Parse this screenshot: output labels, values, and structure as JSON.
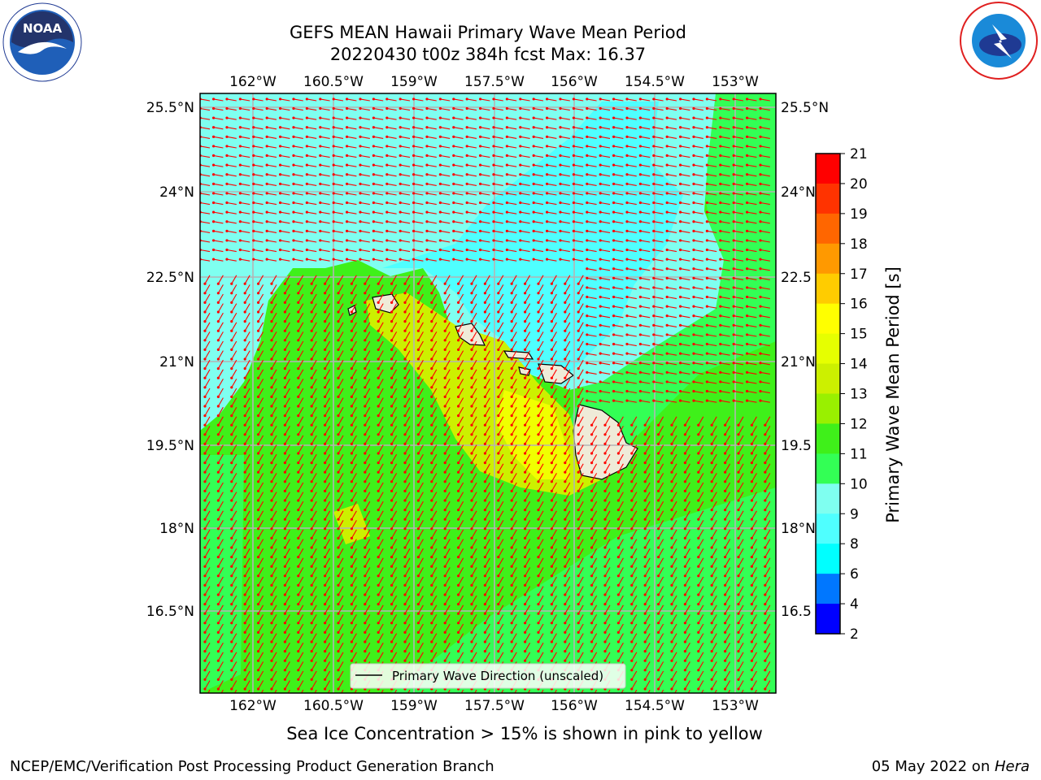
{
  "title": {
    "line1": "GEFS MEAN Hawaii Primary Wave Mean Period",
    "line2": "20220430 t00z 384h fcst   Max: 16.37"
  },
  "map": {
    "lon_labels": [
      "162°W",
      "160.5°W",
      "159°W",
      "157.5°W",
      "156°W",
      "154.5°W",
      "153°W"
    ],
    "lat_labels_left": [
      "25.5°N",
      "24°N",
      "22.5°N",
      "21°N",
      "19.5°N",
      "18°N",
      "16.5°N"
    ],
    "lat_labels_right": [
      "25.5°N",
      "24°N",
      "22.5",
      "21°N",
      "19.5",
      "18°N",
      "16.5"
    ],
    "legend_label": "Primary Wave Direction (unscaled)",
    "arrow_color": "#ff0000",
    "ocean_colors": {
      "cyan_light": "#7ffff0",
      "cyan": "#4fffff",
      "green_light": "#33ff55",
      "green": "#3ff01a",
      "yellow": "#f0ff00",
      "yellow_green": "#ccf000",
      "land": "#efebd8"
    }
  },
  "colorbar": {
    "label": "Primary Wave Mean Period [s]",
    "ticks": [
      "21",
      "20",
      "19",
      "18",
      "17",
      "16",
      "15",
      "14",
      "13",
      "12",
      "11",
      "10",
      "9",
      "8",
      "6",
      "4",
      "2"
    ],
    "colors": [
      "#ff0000",
      "#ff3300",
      "#ff6600",
      "#ff9900",
      "#ffcc00",
      "#ffff00",
      "#e6ff00",
      "#ccf000",
      "#99f000",
      "#3ff01a",
      "#33ff55",
      "#7ffff0",
      "#4fffff",
      "#00ffff",
      "#0077ff",
      "#0000ff"
    ]
  },
  "footer": {
    "subtitle": "Sea Ice Concentration > 15% is shown in pink to yellow",
    "left": "NCEP/EMC/Verification Post Processing Product Generation Branch",
    "right_date": "05 May 2022 on ",
    "right_host": "Hera"
  }
}
